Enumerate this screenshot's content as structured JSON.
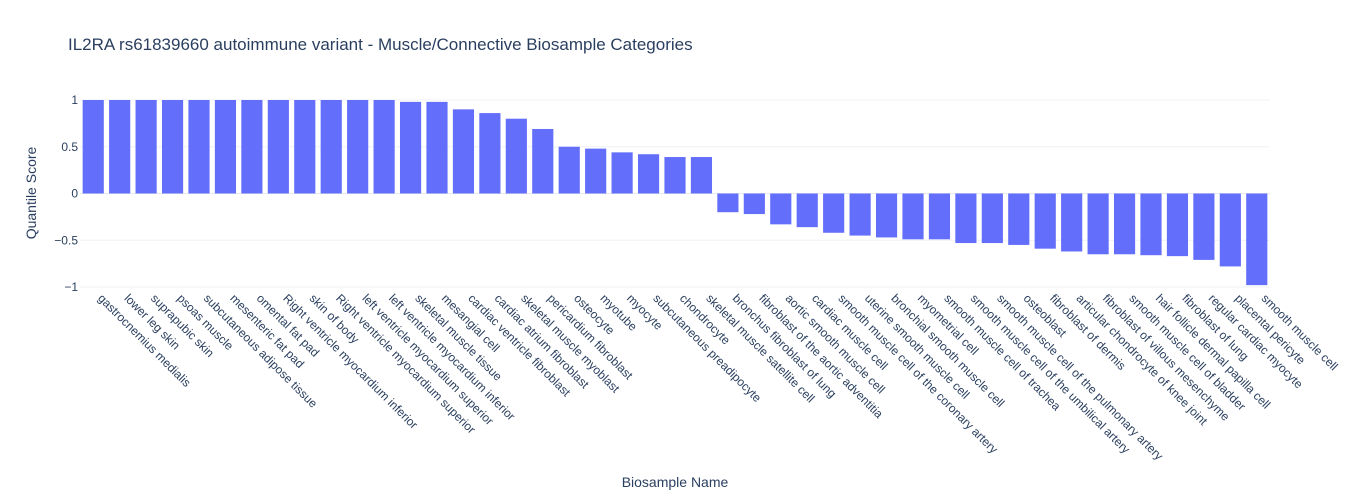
{
  "chart_data": {
    "type": "bar",
    "title": "IL2RA rs61839660 autoimmune variant - Muscle/Connective Biosample Categories",
    "xlabel": "Biosample Name",
    "ylabel": "Quantile Score",
    "ylim": [
      -1,
      1
    ],
    "yticks": [
      1,
      0.5,
      0,
      -0.5,
      -1
    ],
    "ytick_labels": [
      "1",
      "0.5",
      "0",
      "−0.5",
      "−1"
    ],
    "bar_color": "#636efa",
    "grid": true,
    "categories": [
      "gastrocnemius medialis",
      "lower leg skin",
      "suprapubic skin",
      "psoas muscle",
      "subcutaneous adipose tissue",
      "mesenteric fat pad",
      "omental fat pad",
      "Right ventricle myocardium inferior",
      "skin of body",
      "Right ventricle myocardium superior",
      "left ventricle myocardium superior",
      "left ventricle myocardium inferior",
      "skeletal muscle tissue",
      "mesangial cell",
      "cardiac ventricle fibroblast",
      "cardiac atrium fibroblast",
      "skeletal muscle myoblast",
      "pericardium fibroblast",
      "osteocyte",
      "myotube",
      "myocyte",
      "subcutaneous preadipocyte",
      "chondrocyte",
      "skeletal muscle satellite cell",
      "bronchus fibroblast of lung",
      "fibroblast of the aortic adventitia",
      "aortic smooth muscle cell",
      "cardiac muscle cell",
      "smooth muscle cell of the coronary artery",
      "uterine smooth muscle cell",
      "bronchial smooth muscle cell",
      "myometrial cell",
      "smooth muscle cell of trachea",
      "smooth muscle cell of the umbilical artery",
      "smooth muscle cell of the pulmonary artery",
      "osteoblast",
      "fibroblast of dermis",
      "articular chondrocyte of knee joint",
      "fibroblast of villous mesenchyme",
      "smooth muscle cell of bladder",
      "hair follicle dermal papilla cell",
      "fibroblast of lung",
      "regular cardiac myocyte",
      "placental pericyte",
      "smooth muscle cell"
    ],
    "values": [
      1.0,
      1.0,
      1.0,
      1.0,
      1.0,
      1.0,
      1.0,
      1.0,
      1.0,
      1.0,
      1.0,
      1.0,
      0.98,
      0.98,
      0.9,
      0.86,
      0.8,
      0.69,
      0.5,
      0.48,
      0.44,
      0.42,
      0.39,
      0.39,
      -0.2,
      -0.22,
      -0.33,
      -0.36,
      -0.42,
      -0.45,
      -0.47,
      -0.49,
      -0.49,
      -0.53,
      -0.53,
      -0.55,
      -0.59,
      -0.62,
      -0.65,
      -0.65,
      -0.66,
      -0.67,
      -0.71,
      -0.78,
      -0.98
    ]
  }
}
